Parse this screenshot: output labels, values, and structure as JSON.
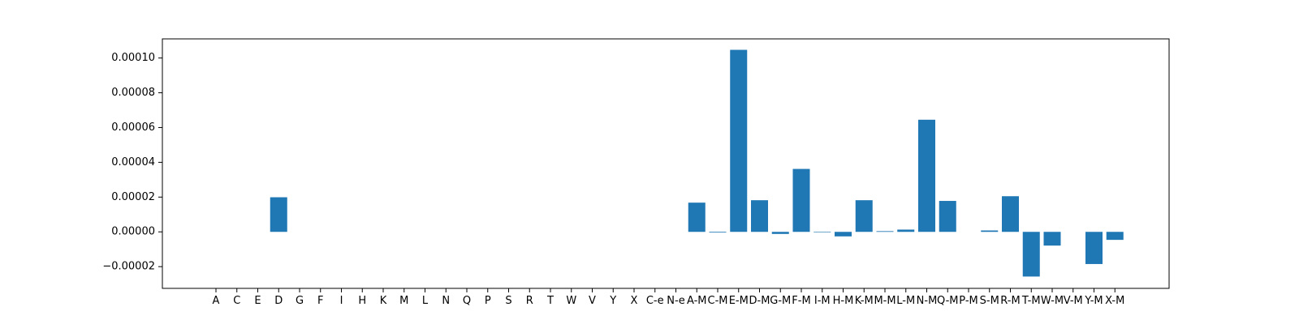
{
  "chart_data": {
    "type": "bar",
    "title": "",
    "xlabel": "",
    "ylabel": "",
    "ylim": [
      -3.25e-05,
      0.000111
    ],
    "yticks": [
      -2e-05,
      0,
      2e-05,
      4e-05,
      6e-05,
      8e-05,
      0.0001
    ],
    "ytick_labels": [
      "−0.00002",
      "0.00000",
      "0.00002",
      "0.00004",
      "0.00006",
      "0.00008",
      "0.00010"
    ],
    "grid": false,
    "bar_color": "#1f77b4",
    "categories": [
      "A",
      "C",
      "E",
      "D",
      "G",
      "F",
      "I",
      "H",
      "K",
      "M",
      "L",
      "N",
      "Q",
      "P",
      "S",
      "R",
      "T",
      "W",
      "V",
      "Y",
      "X",
      "C-e",
      "N-e",
      "A-M",
      "C-M",
      "E-M",
      "D-M",
      "G-M",
      "F-M",
      "I-M",
      "H-M",
      "K-M",
      "M-M",
      "L-M",
      "N-M",
      "Q-M",
      "P-M",
      "S-M",
      "R-M",
      "T-M",
      "W-M",
      "V-M",
      "Y-M",
      "X-M"
    ],
    "values": [
      0,
      0,
      0,
      1.99e-05,
      0,
      0,
      0,
      0,
      0,
      0,
      0,
      0,
      0,
      0,
      0,
      0,
      0,
      0,
      0,
      0,
      0,
      0,
      0,
      1.68e-05,
      -4e-07,
      0.0001047,
      1.82e-05,
      -1.2e-06,
      3.62e-05,
      -3e-07,
      -2.6e-06,
      1.82e-05,
      4e-07,
      1.3e-06,
      6.45e-05,
      1.78e-05,
      0,
      8e-07,
      2.05e-05,
      -2.57e-05,
      -7.9e-06,
      0,
      -1.85e-05,
      -4.6e-06
    ]
  }
}
